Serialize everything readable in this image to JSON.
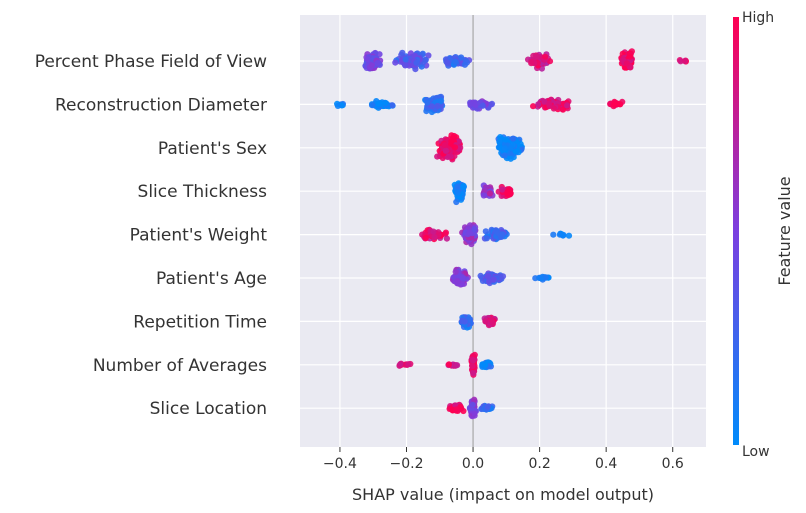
{
  "chart_data": {
    "type": "scatter",
    "subtype": "shap-beeswarm",
    "xlabel": "SHAP value (impact on model output)",
    "xlim": [
      -0.52,
      0.7
    ],
    "x_ticks": [
      -0.4,
      -0.2,
      0.0,
      0.2,
      0.4,
      0.6
    ],
    "x_tick_labels": [
      "−0.4",
      "−0.2",
      "0.0",
      "0.2",
      "0.4",
      "0.6"
    ],
    "zero_line": 0.0,
    "grid": true,
    "colorbar": {
      "title": "Feature value",
      "high_label": "High",
      "low_label": "Low",
      "high_color": "#ff0052",
      "mid_color": "#7b3fe0",
      "low_color": "#008bfb"
    },
    "features": [
      {
        "name": "Percent Phase Field of View",
        "clusters": [
          {
            "center": -0.3,
            "spread": 0.03,
            "n": 90,
            "value": 0.45,
            "width": 11
          },
          {
            "center": -0.18,
            "spread": 0.06,
            "n": 80,
            "value": 0.32,
            "width": 10
          },
          {
            "center": -0.05,
            "spread": 0.06,
            "n": 40,
            "value": 0.25,
            "width": 7
          },
          {
            "center": 0.2,
            "spread": 0.04,
            "n": 55,
            "value": 0.85,
            "width": 9
          },
          {
            "center": 0.46,
            "spread": 0.025,
            "n": 90,
            "value": 0.95,
            "width": 12
          },
          {
            "center": 0.63,
            "spread": 0.02,
            "n": 5,
            "value": 0.95,
            "width": 2
          }
        ]
      },
      {
        "name": "Reconstruction Diameter",
        "clusters": [
          {
            "center": -0.4,
            "spread": 0.03,
            "n": 8,
            "value": 0.05,
            "width": 2
          },
          {
            "center": -0.28,
            "spread": 0.05,
            "n": 40,
            "value": 0.1,
            "width": 5
          },
          {
            "center": -0.12,
            "spread": 0.04,
            "n": 80,
            "value": 0.2,
            "width": 11
          },
          {
            "center": 0.02,
            "spread": 0.05,
            "n": 45,
            "value": 0.45,
            "width": 5
          },
          {
            "center": 0.24,
            "spread": 0.07,
            "n": 80,
            "value": 0.9,
            "width": 6
          },
          {
            "center": 0.43,
            "spread": 0.03,
            "n": 15,
            "value": 0.95,
            "width": 3
          }
        ]
      },
      {
        "name": "Patient's Sex",
        "clusters": [
          {
            "center": -0.07,
            "spread": 0.045,
            "n": 160,
            "value": 0.95,
            "width": 14
          },
          {
            "center": 0.11,
            "spread": 0.045,
            "n": 160,
            "value": 0.05,
            "width": 14
          }
        ]
      },
      {
        "name": "Slice Thickness",
        "clusters": [
          {
            "center": -0.04,
            "spread": 0.02,
            "n": 80,
            "value": 0.05,
            "width": 12
          },
          {
            "center": 0.04,
            "spread": 0.025,
            "n": 40,
            "value": 0.6,
            "width": 7
          },
          {
            "center": 0.1,
            "spread": 0.025,
            "n": 40,
            "value": 0.92,
            "width": 7
          }
        ]
      },
      {
        "name": "Patient's Weight",
        "clusters": [
          {
            "center": -0.12,
            "spread": 0.05,
            "n": 50,
            "value": 0.9,
            "width": 6
          },
          {
            "center": -0.01,
            "spread": 0.025,
            "n": 100,
            "value": 0.55,
            "width": 13
          },
          {
            "center": 0.07,
            "spread": 0.04,
            "n": 70,
            "value": 0.25,
            "width": 7
          },
          {
            "center": 0.26,
            "spread": 0.05,
            "n": 8,
            "value": 0.05,
            "width": 2
          }
        ]
      },
      {
        "name": "Patient's Age",
        "clusters": [
          {
            "center": -0.04,
            "spread": 0.03,
            "n": 90,
            "value": 0.55,
            "width": 11
          },
          {
            "center": 0.06,
            "spread": 0.04,
            "n": 70,
            "value": 0.3,
            "width": 6
          },
          {
            "center": 0.2,
            "spread": 0.05,
            "n": 12,
            "value": 0.05,
            "width": 2
          }
        ]
      },
      {
        "name": "Repetition Time",
        "clusters": [
          {
            "center": -0.02,
            "spread": 0.02,
            "n": 60,
            "value": 0.2,
            "width": 7
          },
          {
            "center": 0.05,
            "spread": 0.02,
            "n": 50,
            "value": 0.9,
            "width": 6
          }
        ]
      },
      {
        "name": "Number of Averages",
        "clusters": [
          {
            "center": -0.21,
            "spread": 0.03,
            "n": 10,
            "value": 0.95,
            "width": 2
          },
          {
            "center": -0.06,
            "spread": 0.02,
            "n": 12,
            "value": 0.9,
            "width": 2
          },
          {
            "center": 0.0,
            "spread": 0.006,
            "n": 90,
            "value": 0.95,
            "width": 13
          },
          {
            "center": 0.04,
            "spread": 0.02,
            "n": 30,
            "value": 0.05,
            "width": 3
          }
        ]
      },
      {
        "name": "Slice Location",
        "clusters": [
          {
            "center": -0.05,
            "spread": 0.03,
            "n": 50,
            "value": 0.95,
            "width": 5
          },
          {
            "center": 0.0,
            "spread": 0.01,
            "n": 60,
            "value": 0.5,
            "width": 12
          },
          {
            "center": 0.04,
            "spread": 0.02,
            "n": 30,
            "value": 0.2,
            "width": 3
          }
        ]
      }
    ]
  }
}
